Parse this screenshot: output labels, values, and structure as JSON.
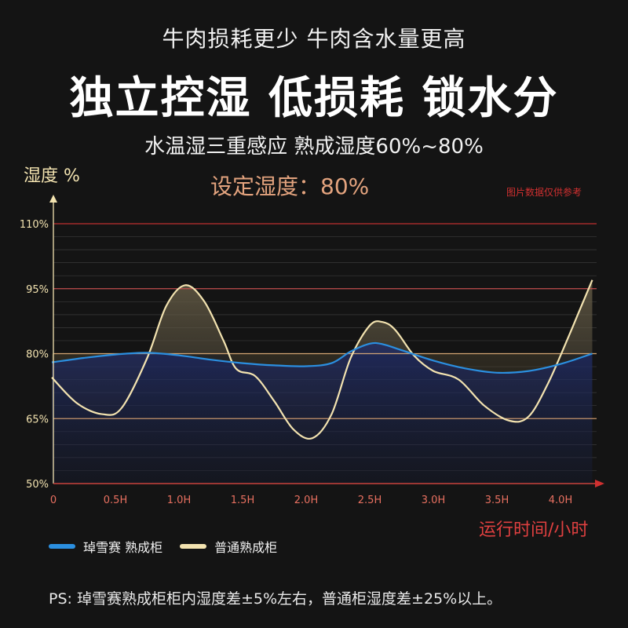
{
  "header": {
    "subtitle": "牛肉损耗更少 牛肉含水量更高",
    "title": "独立控湿 低损耗 锁水分",
    "tagline": "水温湿三重感应 熟成湿度60%~80%"
  },
  "annotations": {
    "setpoint": "设定湿度：80%",
    "disclaimer": "图片数据仅供参考"
  },
  "footnote": "PS: 琸雪赛熟成柜柜内湿度差±5%左右，普通柜湿度差±25%以上。",
  "colors": {
    "background": "#141414",
    "series_blue": "#2b8fe0",
    "series_cream": "#f3e3b0",
    "accent_red": "#d83030",
    "setpoint_orange": "#e3a37e"
  },
  "chart_data": {
    "type": "line",
    "ylabel": "湿度 %",
    "xlabel": "运行时间/小时",
    "x_tick_labels": [
      "0",
      "0.5H",
      "1.0H",
      "1.5H",
      "2.0H",
      "2.5H",
      "3.0H",
      "3.5H",
      "4.0H"
    ],
    "x_ticks": [
      0,
      0.5,
      1.0,
      1.5,
      2.0,
      2.5,
      3.0,
      3.5,
      4.0
    ],
    "y_tick_labels": [
      "50%",
      "65%",
      "80%",
      "95%",
      "110%"
    ],
    "y_ticks": [
      50,
      65,
      80,
      95,
      110
    ],
    "xlim": [
      0,
      4.25
    ],
    "ylim": [
      50,
      110
    ],
    "grid": true,
    "legend_position": "bottom-left",
    "series": [
      {
        "name": "琸雪赛 熟成柜",
        "color": "#2b8fe0",
        "x": [
          0,
          0.25,
          0.5,
          0.75,
          1.0,
          1.25,
          1.5,
          1.75,
          2.0,
          2.2,
          2.35,
          2.5,
          2.6,
          2.75,
          3.0,
          3.25,
          3.5,
          3.75,
          4.0,
          4.25
        ],
        "y": [
          78,
          79,
          79.8,
          80.2,
          79.6,
          78.6,
          77.8,
          77.3,
          77.1,
          77.8,
          80.5,
          82.3,
          82.2,
          80.8,
          78.4,
          76.6,
          75.6,
          76.0,
          77.6,
          80
        ]
      },
      {
        "name": "普通熟成柜",
        "color": "#f3e3b0",
        "x": [
          0,
          0.2,
          0.4,
          0.55,
          0.75,
          0.9,
          1.05,
          1.2,
          1.35,
          1.45,
          1.6,
          1.75,
          1.9,
          2.05,
          2.2,
          2.35,
          2.5,
          2.6,
          2.7,
          2.85,
          3.0,
          3.2,
          3.4,
          3.6,
          3.75,
          3.9,
          4.05,
          4.15,
          4.25
        ],
        "y": [
          74.5,
          68.5,
          66,
          67.5,
          79,
          91,
          95.8,
          92,
          83,
          76.5,
          74.8,
          69,
          62.5,
          60.5,
          66,
          79,
          86.5,
          87.3,
          85.5,
          79.5,
          76,
          74,
          68,
          64.5,
          65.5,
          73,
          83,
          90,
          97
        ]
      }
    ]
  }
}
